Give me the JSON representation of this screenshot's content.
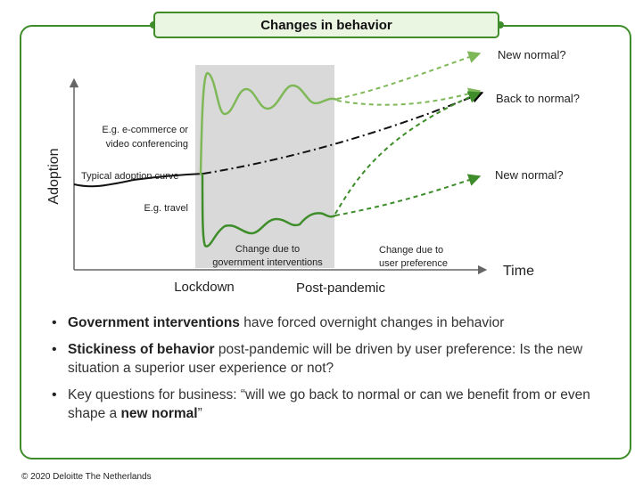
{
  "header": {
    "title": "Changes in behavior"
  },
  "diagram": {
    "y_axis_label": "Adoption",
    "x_axis_label": "Time",
    "lockdown_label": "Lockdown",
    "post_pandemic_label": "Post-pandemic",
    "shaded_label_line1": "Change due to",
    "shaded_label_line2": "government interventions",
    "user_pref_line1": "Change due to",
    "user_pref_line2": "user preference",
    "ecommerce_line1": "E.g. e-commerce  or",
    "ecommerce_line2": "video conferencing",
    "typical_label": "Typical adoption curve",
    "travel_label": "E.g. travel",
    "outcome_top": "New normal?",
    "outcome_middle": "Back to normal?",
    "outcome_bottom": "New normal?",
    "colors": {
      "green_dark": "#3e8d2a",
      "green_light": "#7fb858",
      "shade": "#d9d9d9"
    }
  },
  "bullets": [
    {
      "bold": "Government interventions",
      "rest": " have forced overnight changes in behavior"
    },
    {
      "bold": "Stickiness of behavior",
      "rest": " post-pandemic will be driven by user preference: Is the new situation a superior user experience or not?"
    },
    {
      "prefix": "Key questions for business: “will we go back to normal or can we benefit from or even shape a ",
      "bold": "new normal",
      "suffix": "”"
    }
  ],
  "footer": {
    "copyright": "© 2020 Deloitte The Netherlands"
  }
}
